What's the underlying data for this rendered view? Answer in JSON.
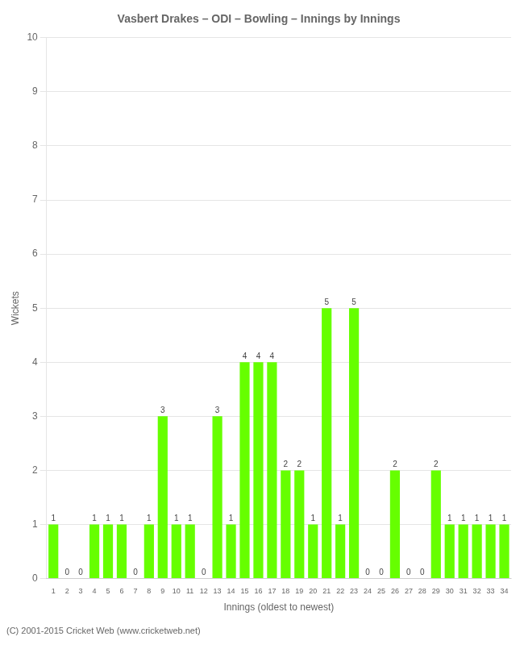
{
  "chart_data": {
    "type": "bar",
    "title": "Vasbert Drakes – ODI – Bowling – Innings by Innings",
    "xlabel": "Innings (oldest to newest)",
    "ylabel": "Wickets",
    "footnote": "(C) 2001-2015 Cricket Web (www.cricketweb.net)",
    "categories": [
      "1",
      "2",
      "3",
      "4",
      "5",
      "6",
      "7",
      "8",
      "9",
      "10",
      "11",
      "12",
      "13",
      "14",
      "15",
      "16",
      "17",
      "18",
      "19",
      "20",
      "21",
      "22",
      "23",
      "24",
      "25",
      "26",
      "27",
      "28",
      "29",
      "30",
      "31",
      "32",
      "33",
      "34"
    ],
    "values": [
      1,
      0,
      0,
      1,
      1,
      1,
      0,
      1,
      3,
      1,
      1,
      0,
      3,
      1,
      4,
      4,
      4,
      2,
      2,
      1,
      5,
      1,
      5,
      0,
      0,
      2,
      0,
      0,
      2,
      1,
      1,
      1,
      1,
      1
    ],
    "color": "#66ff00",
    "ylim": [
      0,
      10
    ],
    "yticks": [
      0,
      1,
      2,
      3,
      4,
      5,
      6,
      7,
      8,
      9,
      10
    ],
    "grid": true,
    "data_labels": true
  }
}
